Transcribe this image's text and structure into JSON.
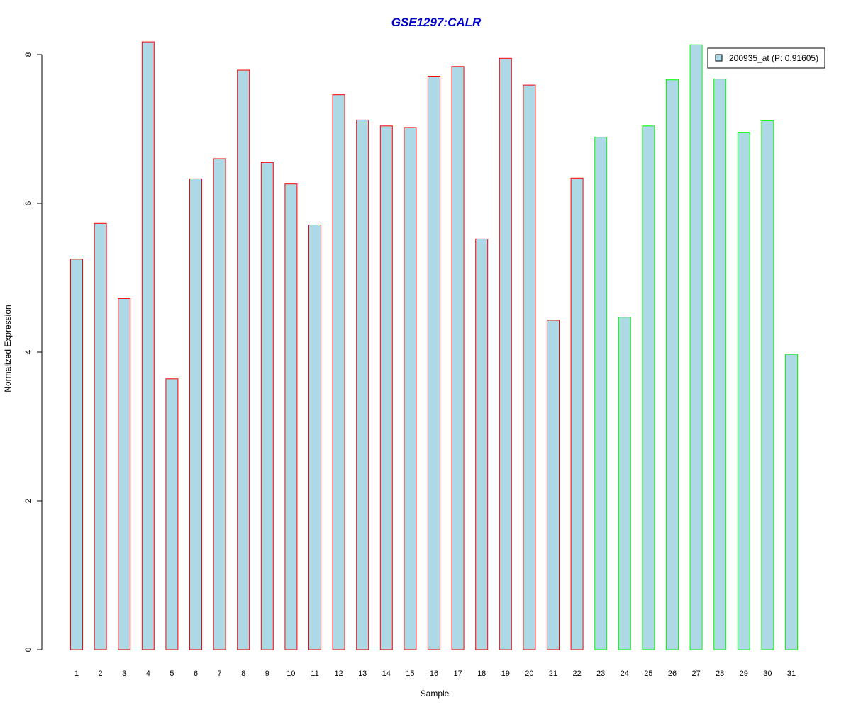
{
  "chart_data": {
    "type": "bar",
    "title": "GSE1297:CALR",
    "xlabel": "Sample",
    "ylabel": "Normalized Expression",
    "categories": [
      "1",
      "2",
      "3",
      "4",
      "5",
      "6",
      "7",
      "8",
      "9",
      "10",
      "11",
      "12",
      "13",
      "14",
      "15",
      "16",
      "17",
      "18",
      "19",
      "20",
      "21",
      "22",
      "23",
      "24",
      "25",
      "26",
      "27",
      "28",
      "29",
      "30",
      "31"
    ],
    "series": [
      {
        "name": "200935_at (P: 0.91605)",
        "values": [
          5.25,
          5.73,
          4.72,
          8.17,
          3.64,
          6.33,
          6.6,
          7.79,
          6.55,
          6.26,
          5.71,
          7.46,
          7.12,
          7.04,
          7.02,
          7.71,
          7.84,
          5.52,
          7.95,
          7.59,
          4.43,
          6.34,
          6.89,
          4.47,
          7.04,
          7.66,
          8.13,
          7.67,
          6.95,
          7.11,
          3.97
        ]
      }
    ],
    "bar_fill": "#add8e6",
    "group_border_colors": [
      "#ff0000",
      "#ff0000",
      "#ff0000",
      "#ff0000",
      "#ff0000",
      "#ff0000",
      "#ff0000",
      "#ff0000",
      "#ff0000",
      "#ff0000",
      "#ff0000",
      "#ff0000",
      "#ff0000",
      "#ff0000",
      "#ff0000",
      "#ff0000",
      "#ff0000",
      "#ff0000",
      "#ff0000",
      "#ff0000",
      "#ff0000",
      "#ff0000",
      "#00ff00",
      "#00ff00",
      "#00ff00",
      "#00ff00",
      "#00ff00",
      "#00ff00",
      "#00ff00",
      "#00ff00",
      "#00ff00"
    ],
    "title_color": "#0000cc",
    "ylim": [
      0,
      8.2
    ],
    "yticks": [
      0,
      2,
      4,
      6,
      8
    ],
    "grid": false,
    "legend_position": "top-right"
  }
}
